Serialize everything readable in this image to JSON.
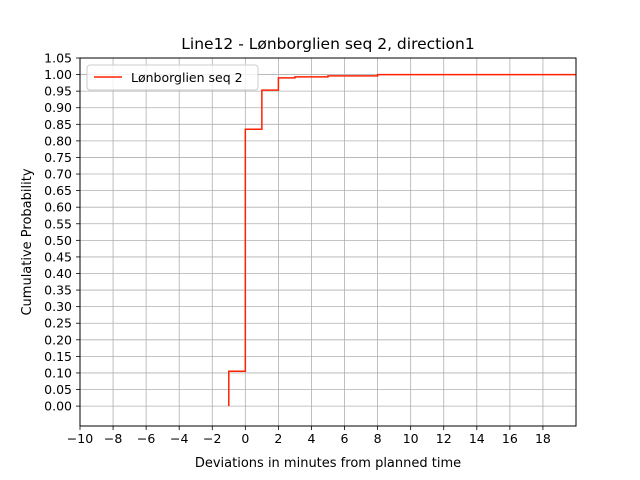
{
  "chart_data": {
    "type": "line",
    "step": "post",
    "title": "Line12 - Lønborglien seq 2, direction1",
    "xlabel": "Deviations in minutes from planned time",
    "ylabel": "Cumulative Probability",
    "xlim": [
      -10,
      20
    ],
    "ylim": [
      -0.06,
      1.05
    ],
    "x_ticks": [
      -10,
      -8,
      -6,
      -4,
      -2,
      0,
      2,
      4,
      6,
      8,
      10,
      12,
      14,
      16,
      18
    ],
    "x_tick_labels": [
      "−10",
      "−8",
      "−6",
      "−4",
      "−2",
      "0",
      "2",
      "4",
      "6",
      "8",
      "10",
      "12",
      "14",
      "16",
      "18"
    ],
    "x_grid": [
      -10,
      -8,
      -6,
      -4,
      -2,
      0,
      2,
      4,
      6,
      8,
      10,
      12,
      14,
      16,
      18,
      20
    ],
    "y_ticks": [
      0.0,
      0.05,
      0.1,
      0.15,
      0.2,
      0.25,
      0.3,
      0.35,
      0.4,
      0.45,
      0.5,
      0.55,
      0.6,
      0.65,
      0.7,
      0.75,
      0.8,
      0.85,
      0.9,
      0.95,
      1.0,
      1.05
    ],
    "y_tick_labels": [
      "0.00",
      "0.05",
      "0.10",
      "0.15",
      "0.20",
      "0.25",
      "0.30",
      "0.35",
      "0.40",
      "0.45",
      "0.50",
      "0.55",
      "0.60",
      "0.65",
      "0.70",
      "0.75",
      "0.80",
      "0.85",
      "0.90",
      "0.95",
      "1.00",
      "1.05"
    ],
    "grid": true,
    "legend_position": "top-left",
    "series": [
      {
        "name": "Lønborglien seq 2",
        "color": "#ff2200",
        "x": [
          -1,
          0,
          1,
          2,
          3,
          5,
          8,
          20
        ],
        "y": [
          0.105,
          0.835,
          0.953,
          0.99,
          0.993,
          0.996,
          1.0,
          1.0
        ]
      }
    ]
  }
}
